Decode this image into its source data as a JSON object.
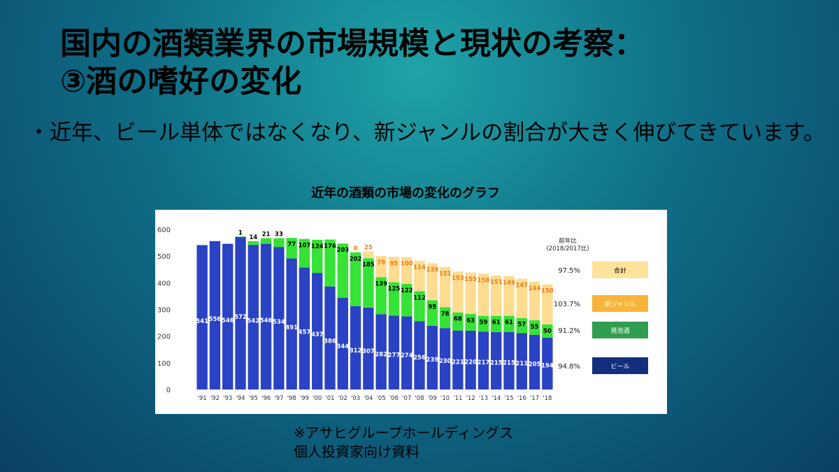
{
  "slide": {
    "title_line1": "国内の酒類業界の市場規模と現状の考察：",
    "title_line2": "③酒の嗜好の変化",
    "bullet": "・近年、ビール単体ではなくなり、新ジャンルの割合が大きく伸びてきています。",
    "chart_caption": "近年の酒類の市場の変化のグラフ",
    "source_line1": "※アサヒグループホールディングス",
    "source_line2": "個人投資家向け資料"
  },
  "chart_data": {
    "type": "bar",
    "stacked": true,
    "categories": [
      "'91",
      "'92",
      "'93",
      "'94",
      "'95",
      "'96",
      "'97",
      "'98",
      "'99",
      "'00",
      "'01",
      "'02",
      "'03",
      "'04",
      "'05",
      "'06",
      "'07",
      "'08",
      "'09",
      "'10",
      "'11",
      "'12",
      "'13",
      "'14",
      "'15",
      "'16",
      "'17",
      "'18"
    ],
    "ylim": [
      0,
      600
    ],
    "yticks": [
      0,
      100,
      200,
      300,
      400,
      500,
      600
    ],
    "series": [
      {
        "name": "ビール",
        "color": "#2a42c4",
        "label_color": "#ffffff",
        "values": [
          541,
          556,
          546,
          572,
          542,
          546,
          534,
          491,
          457,
          437,
          386,
          344,
          312,
          307,
          282,
          277,
          274,
          256,
          239,
          230,
          221,
          220,
          217,
          215,
          215,
          211,
          205,
          194
        ]
      },
      {
        "name": "発泡酒",
        "color": "#35e235",
        "label_color": "#000000",
        "values": [
          0,
          0,
          0,
          1,
          14,
          21,
          33,
          77,
          107,
          124,
          176,
          203,
          202,
          185,
          139,
          125,
          122,
          112,
          95,
          78,
          68,
          63,
          59,
          61,
          61,
          57,
          55,
          50
        ]
      },
      {
        "name": "新ジャンル",
        "color": "#fddc8f",
        "label_color": "#f07a1a",
        "values": [
          0,
          0,
          0,
          0,
          0,
          0,
          0,
          0,
          0,
          0,
          0,
          0,
          0,
          25,
          79,
          95,
          100,
          114,
          139,
          151,
          153,
          155,
          158,
          151,
          149,
          147,
          144,
          150
        ]
      }
    ],
    "extra_labels": [
      {
        "index": 12,
        "text": "0",
        "color": "#f07a1a"
      }
    ],
    "legend": {
      "header_line1": "前年比",
      "header_line2": "(2018/2017比)",
      "items": [
        {
          "pct": "97.5%",
          "name": "合計",
          "color": "#fde39a",
          "text_color": "#000000"
        },
        {
          "pct": "103.7%",
          "name": "新ジャンル",
          "color": "#f7b43a",
          "text_color": "#ffffff"
        },
        {
          "pct": "91.2%",
          "name": "発泡酒",
          "color": "#2f9e4f",
          "text_color": "#ffffff"
        },
        {
          "pct": "94.8%",
          "name": "ビール",
          "color": "#132e7c",
          "text_color": "#ffffff"
        }
      ]
    }
  }
}
